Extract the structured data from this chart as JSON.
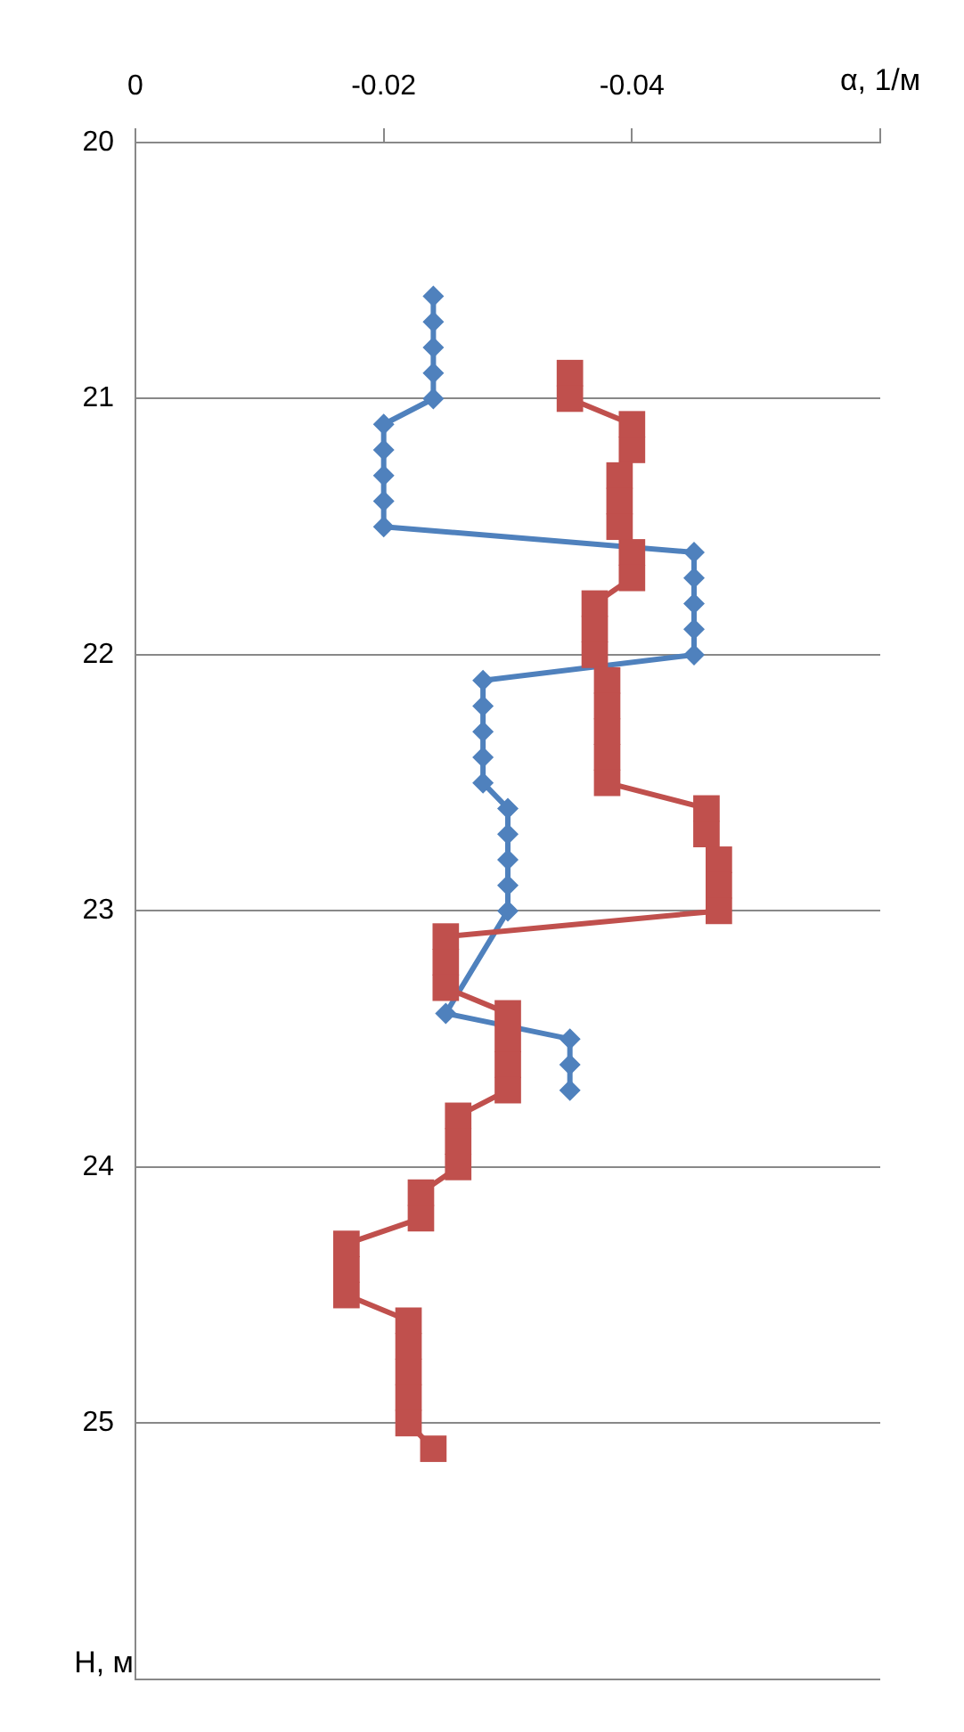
{
  "chart_data": {
    "type": "line",
    "xlabel": "α, 1/м",
    "ylabel": "H, м",
    "xlim": [
      0,
      -0.06
    ],
    "xticks": [
      0,
      -0.02,
      -0.04,
      {
        "value": -0.06,
        "label": null
      }
    ],
    "ylim": [
      26,
      20
    ],
    "yticks": [
      20,
      21,
      22,
      23,
      24,
      25,
      {
        "value": 26,
        "label": null
      }
    ],
    "grid": "y",
    "legend": false,
    "series": [
      {
        "color": "#4f81bd",
        "marker": "diamond",
        "x": [
          -0.024,
          -0.024,
          -0.024,
          -0.024,
          -0.024,
          -0.02,
          -0.02,
          -0.02,
          -0.02,
          -0.02,
          -0.045,
          -0.045,
          -0.045,
          -0.045,
          -0.045,
          -0.028,
          -0.028,
          -0.028,
          -0.028,
          -0.028,
          -0.03,
          -0.03,
          -0.03,
          -0.03,
          -0.03,
          -0.025,
          -0.035,
          -0.035,
          -0.035
        ],
        "values": [
          20.6,
          20.7,
          20.8,
          20.9,
          21.0,
          21.1,
          21.2,
          21.3,
          21.4,
          21.5,
          21.6,
          21.7,
          21.8,
          21.9,
          22.0,
          22.1,
          22.2,
          22.3,
          22.4,
          22.5,
          22.6,
          22.7,
          22.8,
          22.9,
          23.0,
          23.4,
          23.5,
          23.6,
          23.7
        ]
      },
      {
        "color": "#c0504d",
        "marker": "square",
        "x": [
          -0.035,
          -0.035,
          -0.04,
          -0.04,
          -0.039,
          -0.039,
          -0.039,
          -0.04,
          -0.04,
          -0.037,
          -0.037,
          -0.037,
          -0.038,
          -0.038,
          -0.038,
          -0.038,
          -0.038,
          -0.046,
          -0.046,
          -0.047,
          -0.047,
          -0.047,
          -0.025,
          -0.025,
          -0.025,
          -0.03,
          -0.03,
          -0.03,
          -0.03,
          -0.026,
          -0.026,
          -0.026,
          -0.023,
          -0.023,
          -0.017,
          -0.017,
          -0.017,
          -0.022,
          -0.022,
          -0.022,
          -0.022,
          -0.022,
          -0.024
        ],
        "values": [
          20.9,
          21.0,
          21.1,
          21.2,
          21.3,
          21.4,
          21.5,
          21.6,
          21.7,
          21.8,
          21.9,
          22.0,
          22.1,
          22.2,
          22.3,
          22.4,
          22.5,
          22.6,
          22.7,
          22.8,
          22.9,
          23.0,
          23.1,
          23.2,
          23.3,
          23.4,
          23.5,
          23.6,
          23.7,
          23.8,
          23.9,
          24.0,
          24.1,
          24.2,
          24.3,
          24.4,
          24.5,
          24.6,
          24.7,
          24.8,
          24.9,
          25.0,
          25.1
        ]
      }
    ]
  }
}
